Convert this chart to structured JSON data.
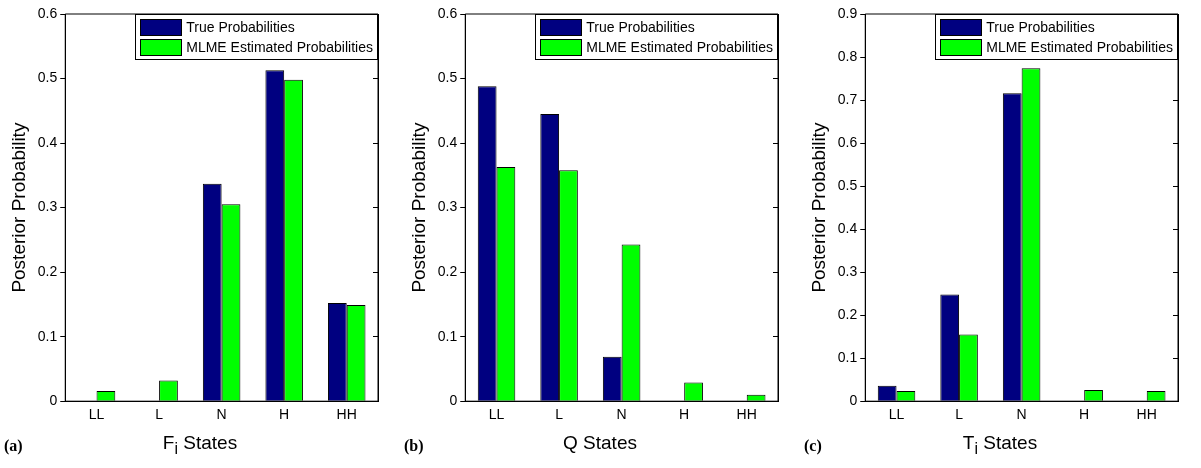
{
  "chart_data": [
    {
      "type": "bar",
      "categories": [
        "LL",
        "L",
        "N",
        "H",
        "HH"
      ],
      "xlabel": "F$_{i}$ States",
      "ylabel": "Posterior Probability",
      "annotations": [
        "(a)"
      ],
      "series": [
        {
          "name": "True Probabilities",
          "color": "#000080",
          "values": [
            0,
            0,
            0.337,
            0.513,
            0.152
          ]
        },
        {
          "name": "MLME Estimated Probabilities",
          "color": "#00ff00",
          "values": [
            0.016,
            0.032,
            0.305,
            0.498,
            0.149
          ]
        }
      ],
      "ylim": [
        0,
        0.6
      ],
      "yticks": [
        0,
        0.1,
        0.2,
        0.3,
        0.4,
        0.5,
        0.6
      ],
      "grid": false,
      "legend": "top right"
    },
    {
      "type": "bar",
      "categories": [
        "LL",
        "L",
        "N",
        "H",
        "HH"
      ],
      "xlabel": "Q States",
      "ylabel": "Posterior Probability",
      "annotations": [
        "(b)"
      ],
      "series": [
        {
          "name": "True Probabilities",
          "color": "#000080",
          "values": [
            0.488,
            0.445,
            0.069,
            0,
            0
          ]
        },
        {
          "name": "MLME Estimated Probabilities",
          "color": "#00ff00",
          "values": [
            0.363,
            0.358,
            0.243,
            0.029,
            0.01
          ]
        }
      ],
      "ylim": [
        0,
        0.6
      ],
      "yticks": [
        0,
        0.1,
        0.2,
        0.3,
        0.4,
        0.5,
        0.6
      ],
      "grid": false,
      "legend": "top right"
    },
    {
      "type": "bar",
      "categories": [
        "LL",
        "L",
        "N",
        "H",
        "HH"
      ],
      "xlabel": "T$_{i}$ States",
      "ylabel": "Posterior Probability",
      "annotations": [
        "(c)"
      ],
      "series": [
        {
          "name": "True Probabilities",
          "color": "#000080",
          "values": [
            0.036,
            0.248,
            0.716,
            0,
            0
          ]
        },
        {
          "name": "MLME Estimated Probabilities",
          "color": "#00ff00",
          "values": [
            0.024,
            0.155,
            0.774,
            0.026,
            0.024
          ]
        }
      ],
      "ylim": [
        0,
        0.9
      ],
      "yticks": [
        0,
        0.1,
        0.2,
        0.3,
        0.4,
        0.5,
        0.6,
        0.7,
        0.8,
        0.9
      ],
      "grid": false,
      "legend": "top right"
    }
  ]
}
